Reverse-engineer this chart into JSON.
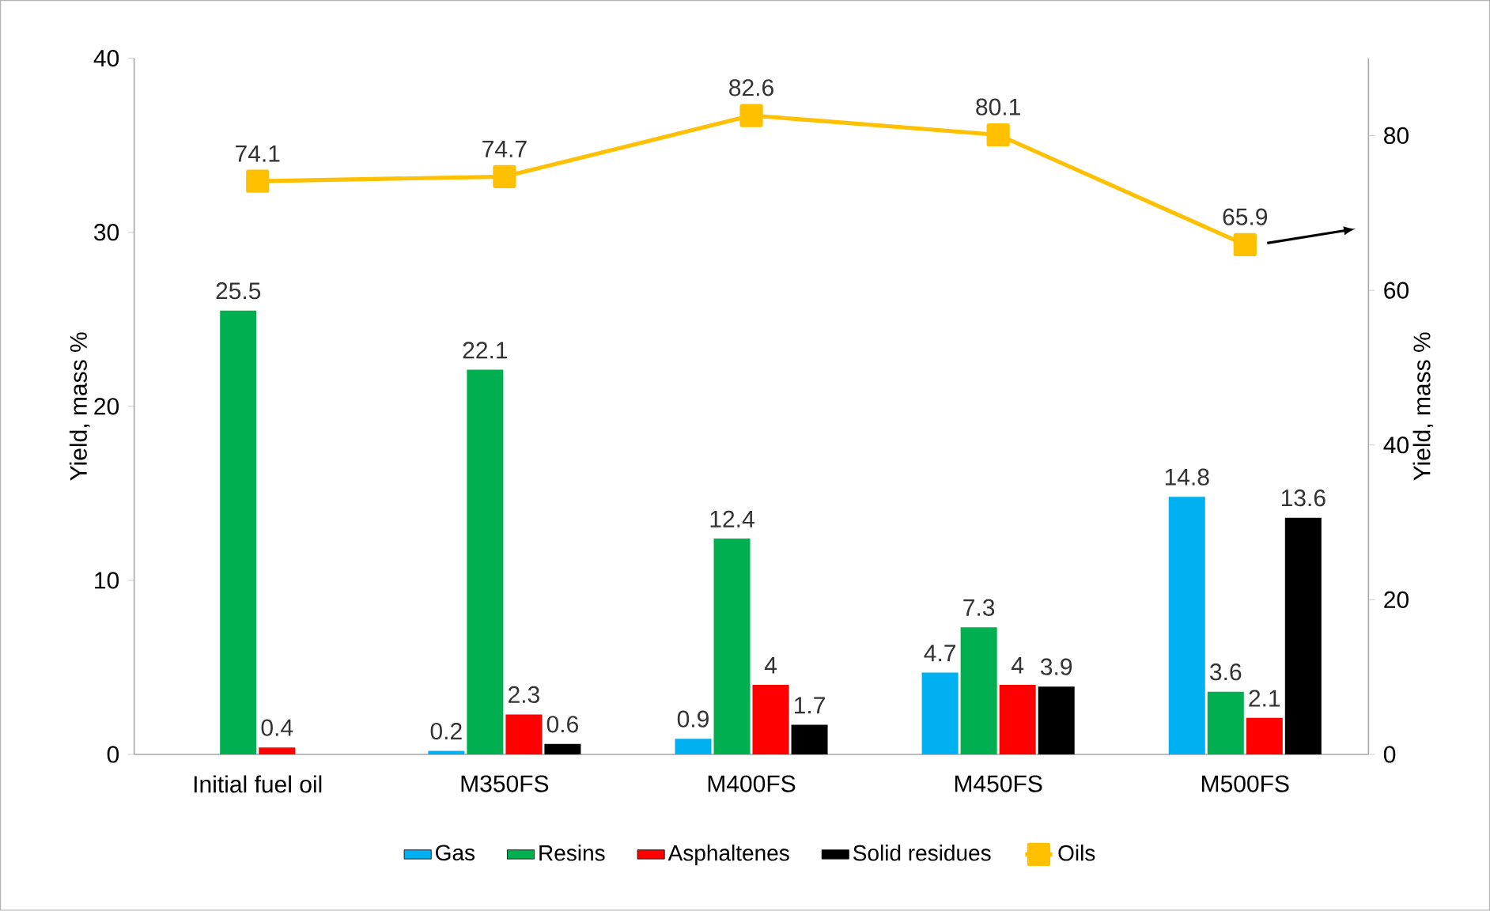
{
  "chart_data": {
    "type": "bar",
    "categories": [
      "Initial fuel oil",
      "M350FS",
      "M400FS",
      "M450FS",
      "M500FS"
    ],
    "series": [
      {
        "name": "Gas",
        "color": "#00b0f0",
        "values": [
          null,
          0.2,
          0.9,
          4.7,
          14.8
        ]
      },
      {
        "name": "Resins",
        "color": "#00b050",
        "values": [
          25.5,
          22.1,
          12.4,
          7.3,
          3.6
        ]
      },
      {
        "name": "Asphaltenes",
        "color": "#ff0000",
        "values": [
          0.4,
          2.3,
          4,
          4,
          2.1
        ]
      },
      {
        "name": "Solid residues",
        "color": "#000000",
        "values": [
          null,
          0.6,
          1.7,
          3.9,
          13.6
        ]
      },
      {
        "name": "Oils",
        "color": "#ffc000",
        "type": "line",
        "axis": "y2",
        "marker": "square",
        "values": [
          74.1,
          74.7,
          82.6,
          80.1,
          65.9
        ]
      }
    ],
    "ylabel": "Yield, mass %",
    "y2label": "Yield, mass %",
    "ylim": [
      0,
      40
    ],
    "yticks": [
      0,
      10,
      20,
      30,
      40
    ],
    "y2lim": [
      0,
      90
    ],
    "y2ticks": [
      0,
      20,
      40,
      60,
      80
    ],
    "data_labels": true,
    "legend": "bottom"
  }
}
